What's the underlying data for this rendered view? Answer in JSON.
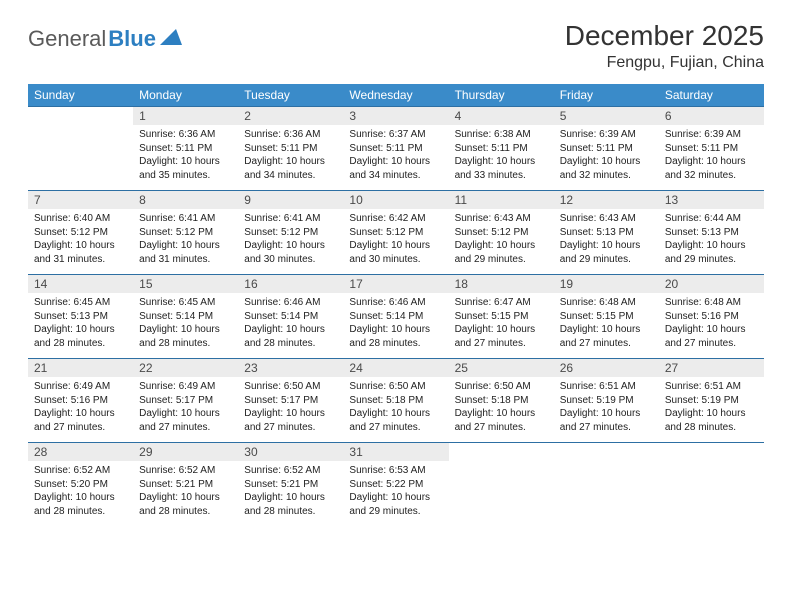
{
  "logo": {
    "text1": "General",
    "text2": "Blue"
  },
  "title": "December 2025",
  "location": "Fengpu, Fujian, China",
  "colors": {
    "header_bg": "#3a8bc9",
    "header_text": "#ffffff",
    "daynum_bg": "#ececec",
    "row_border": "#2d6fa3",
    "logo_gray": "#5a5a5a",
    "logo_blue": "#2d7fc1"
  },
  "day_names": [
    "Sunday",
    "Monday",
    "Tuesday",
    "Wednesday",
    "Thursday",
    "Friday",
    "Saturday"
  ],
  "weeks": [
    [
      {
        "n": "",
        "sr": "",
        "ss": "",
        "dl": ""
      },
      {
        "n": "1",
        "sr": "Sunrise: 6:36 AM",
        "ss": "Sunset: 5:11 PM",
        "dl": "Daylight: 10 hours and 35 minutes."
      },
      {
        "n": "2",
        "sr": "Sunrise: 6:36 AM",
        "ss": "Sunset: 5:11 PM",
        "dl": "Daylight: 10 hours and 34 minutes."
      },
      {
        "n": "3",
        "sr": "Sunrise: 6:37 AM",
        "ss": "Sunset: 5:11 PM",
        "dl": "Daylight: 10 hours and 34 minutes."
      },
      {
        "n": "4",
        "sr": "Sunrise: 6:38 AM",
        "ss": "Sunset: 5:11 PM",
        "dl": "Daylight: 10 hours and 33 minutes."
      },
      {
        "n": "5",
        "sr": "Sunrise: 6:39 AM",
        "ss": "Sunset: 5:11 PM",
        "dl": "Daylight: 10 hours and 32 minutes."
      },
      {
        "n": "6",
        "sr": "Sunrise: 6:39 AM",
        "ss": "Sunset: 5:11 PM",
        "dl": "Daylight: 10 hours and 32 minutes."
      }
    ],
    [
      {
        "n": "7",
        "sr": "Sunrise: 6:40 AM",
        "ss": "Sunset: 5:12 PM",
        "dl": "Daylight: 10 hours and 31 minutes."
      },
      {
        "n": "8",
        "sr": "Sunrise: 6:41 AM",
        "ss": "Sunset: 5:12 PM",
        "dl": "Daylight: 10 hours and 31 minutes."
      },
      {
        "n": "9",
        "sr": "Sunrise: 6:41 AM",
        "ss": "Sunset: 5:12 PM",
        "dl": "Daylight: 10 hours and 30 minutes."
      },
      {
        "n": "10",
        "sr": "Sunrise: 6:42 AM",
        "ss": "Sunset: 5:12 PM",
        "dl": "Daylight: 10 hours and 30 minutes."
      },
      {
        "n": "11",
        "sr": "Sunrise: 6:43 AM",
        "ss": "Sunset: 5:12 PM",
        "dl": "Daylight: 10 hours and 29 minutes."
      },
      {
        "n": "12",
        "sr": "Sunrise: 6:43 AM",
        "ss": "Sunset: 5:13 PM",
        "dl": "Daylight: 10 hours and 29 minutes."
      },
      {
        "n": "13",
        "sr": "Sunrise: 6:44 AM",
        "ss": "Sunset: 5:13 PM",
        "dl": "Daylight: 10 hours and 29 minutes."
      }
    ],
    [
      {
        "n": "14",
        "sr": "Sunrise: 6:45 AM",
        "ss": "Sunset: 5:13 PM",
        "dl": "Daylight: 10 hours and 28 minutes."
      },
      {
        "n": "15",
        "sr": "Sunrise: 6:45 AM",
        "ss": "Sunset: 5:14 PM",
        "dl": "Daylight: 10 hours and 28 minutes."
      },
      {
        "n": "16",
        "sr": "Sunrise: 6:46 AM",
        "ss": "Sunset: 5:14 PM",
        "dl": "Daylight: 10 hours and 28 minutes."
      },
      {
        "n": "17",
        "sr": "Sunrise: 6:46 AM",
        "ss": "Sunset: 5:14 PM",
        "dl": "Daylight: 10 hours and 28 minutes."
      },
      {
        "n": "18",
        "sr": "Sunrise: 6:47 AM",
        "ss": "Sunset: 5:15 PM",
        "dl": "Daylight: 10 hours and 27 minutes."
      },
      {
        "n": "19",
        "sr": "Sunrise: 6:48 AM",
        "ss": "Sunset: 5:15 PM",
        "dl": "Daylight: 10 hours and 27 minutes."
      },
      {
        "n": "20",
        "sr": "Sunrise: 6:48 AM",
        "ss": "Sunset: 5:16 PM",
        "dl": "Daylight: 10 hours and 27 minutes."
      }
    ],
    [
      {
        "n": "21",
        "sr": "Sunrise: 6:49 AM",
        "ss": "Sunset: 5:16 PM",
        "dl": "Daylight: 10 hours and 27 minutes."
      },
      {
        "n": "22",
        "sr": "Sunrise: 6:49 AM",
        "ss": "Sunset: 5:17 PM",
        "dl": "Daylight: 10 hours and 27 minutes."
      },
      {
        "n": "23",
        "sr": "Sunrise: 6:50 AM",
        "ss": "Sunset: 5:17 PM",
        "dl": "Daylight: 10 hours and 27 minutes."
      },
      {
        "n": "24",
        "sr": "Sunrise: 6:50 AM",
        "ss": "Sunset: 5:18 PM",
        "dl": "Daylight: 10 hours and 27 minutes."
      },
      {
        "n": "25",
        "sr": "Sunrise: 6:50 AM",
        "ss": "Sunset: 5:18 PM",
        "dl": "Daylight: 10 hours and 27 minutes."
      },
      {
        "n": "26",
        "sr": "Sunrise: 6:51 AM",
        "ss": "Sunset: 5:19 PM",
        "dl": "Daylight: 10 hours and 27 minutes."
      },
      {
        "n": "27",
        "sr": "Sunrise: 6:51 AM",
        "ss": "Sunset: 5:19 PM",
        "dl": "Daylight: 10 hours and 28 minutes."
      }
    ],
    [
      {
        "n": "28",
        "sr": "Sunrise: 6:52 AM",
        "ss": "Sunset: 5:20 PM",
        "dl": "Daylight: 10 hours and 28 minutes."
      },
      {
        "n": "29",
        "sr": "Sunrise: 6:52 AM",
        "ss": "Sunset: 5:21 PM",
        "dl": "Daylight: 10 hours and 28 minutes."
      },
      {
        "n": "30",
        "sr": "Sunrise: 6:52 AM",
        "ss": "Sunset: 5:21 PM",
        "dl": "Daylight: 10 hours and 28 minutes."
      },
      {
        "n": "31",
        "sr": "Sunrise: 6:53 AM",
        "ss": "Sunset: 5:22 PM",
        "dl": "Daylight: 10 hours and 29 minutes."
      },
      {
        "n": "",
        "sr": "",
        "ss": "",
        "dl": ""
      },
      {
        "n": "",
        "sr": "",
        "ss": "",
        "dl": ""
      },
      {
        "n": "",
        "sr": "",
        "ss": "",
        "dl": ""
      }
    ]
  ]
}
